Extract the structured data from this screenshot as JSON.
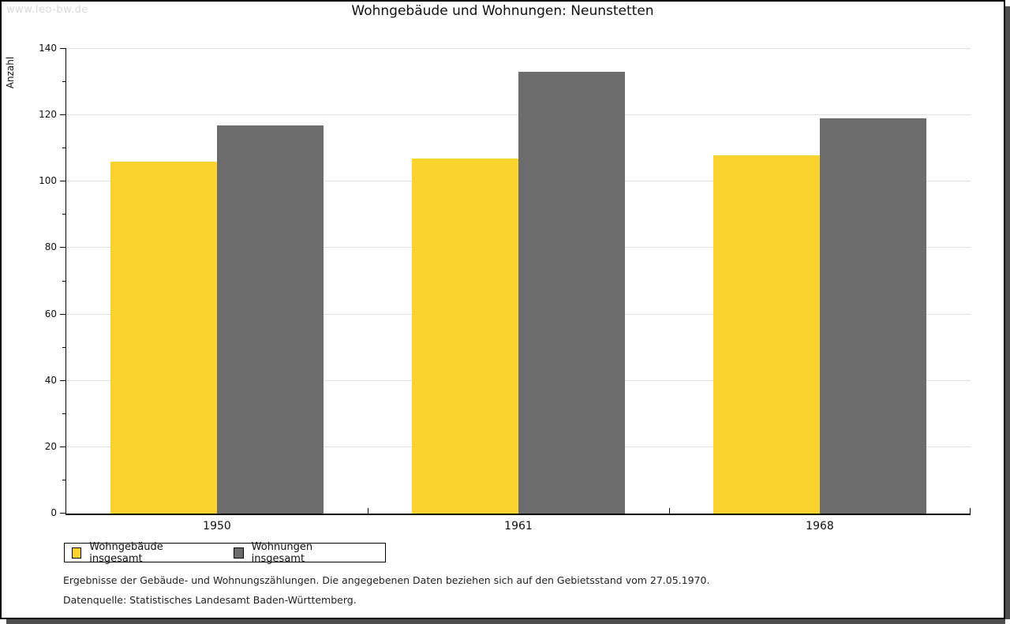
{
  "watermark": {
    "text": "www.leo-bw.de"
  },
  "chart_data": {
    "type": "bar",
    "title": "Wohngebäude und Wohnungen: Neunstetten",
    "ylabel": "Anzahl",
    "xlabel": "",
    "categories": [
      "1950",
      "1961",
      "1968"
    ],
    "series": [
      {
        "name": "Wohngebäude insgesamt",
        "color": "#FCD32E",
        "values": [
          106,
          107,
          108
        ]
      },
      {
        "name": "Wohnungen insgesamt",
        "color": "#6C6C6C",
        "values": [
          117,
          133,
          119
        ]
      }
    ],
    "ylim": [
      0,
      140
    ],
    "ytick_step": 20,
    "yminor_step": 10,
    "grid": true,
    "legend_position": "bottom-left",
    "gridline_color": "#E1E1E1",
    "axis_color": "#000000"
  },
  "footnotes": {
    "line1": "Ergebnisse der Gebäude- und Wohnungszählungen. Die angegebenen Daten beziehen sich auf den Gebietsstand vom 27.05.1970.",
    "line2": "Datenquelle: Statistisches Landesamt Baden-Württemberg."
  }
}
